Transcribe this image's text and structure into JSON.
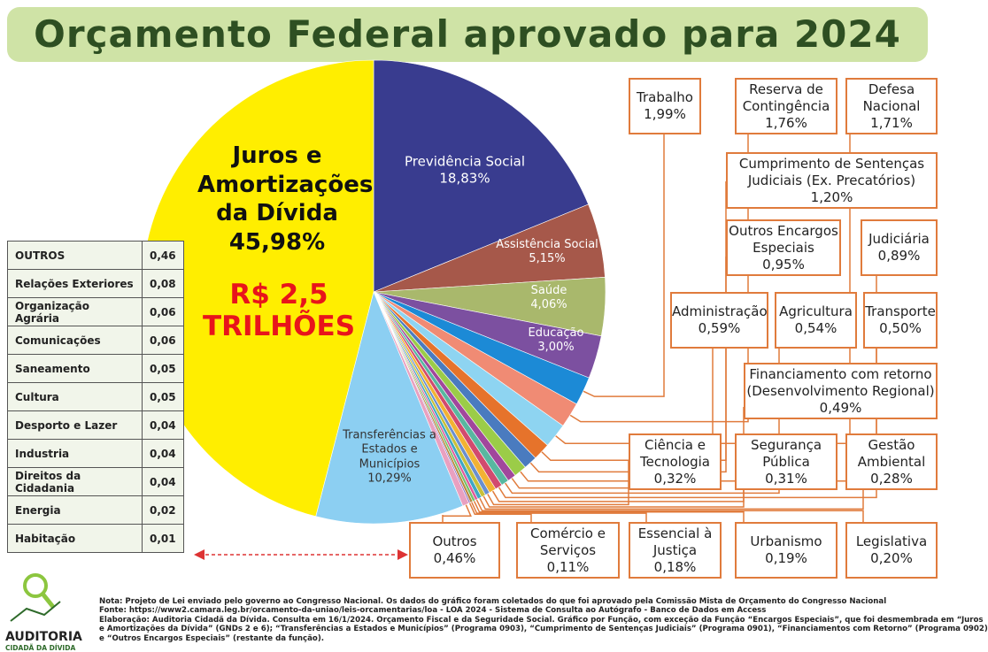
{
  "header": {
    "title": "Orçamento Federal aprovado para 2024"
  },
  "chart_data": {
    "type": "pie",
    "categories": [
      "Previdência Social",
      "Assistência Social",
      "Saúde",
      "Educação",
      "Trabalho",
      "Reserva de Contingência",
      "Defesa Nacional",
      "Cumprimento de Sentenças Judiciais (Ex. Precatórios)",
      "Outros Encargos Especiais",
      "Judiciária",
      "Administração",
      "Agricultura",
      "Transporte",
      "Financiamento com retorno (Desenvolvimento Regional)",
      "Ciência e Tecnologia",
      "Segurança Pública",
      "Gestão Ambiental",
      "Legislativa",
      "Urbanismo",
      "Essencial à Justiça",
      "Comércio e Serviços",
      "Outros",
      "Transferências a Estados e Municípios",
      "Juros e Amortizações da Dívida"
    ],
    "values": [
      18.83,
      5.15,
      4.06,
      3.0,
      1.99,
      1.76,
      1.71,
      1.2,
      0.95,
      0.89,
      0.59,
      0.54,
      0.5,
      0.49,
      0.32,
      0.31,
      0.28,
      0.2,
      0.19,
      0.18,
      0.11,
      0.46,
      10.29,
      45.98
    ],
    "value_labels": [
      "18,83%",
      "5,15%",
      "4,06%",
      "3,00%",
      "1,99%",
      "1,76%",
      "1,71%",
      "1,20%",
      "0,95%",
      "0,89%",
      "0,59%",
      "0,54%",
      "0,50%",
      "0,49%",
      "0,32%",
      "0,31%",
      "0,28%",
      "0,20%",
      "0,19%",
      "0,18%",
      "0,11%",
      "0,46%",
      "10,29%",
      "45,98%"
    ],
    "colors": [
      "#393c8f",
      "#a6584a",
      "#a9b86c",
      "#7c50a0",
      "#1c8ad6",
      "#f08b74",
      "#8ed4f1",
      "#e6732b",
      "#4a7bbf",
      "#9bcc48",
      "#a1479c",
      "#58b7a0",
      "#d24a6e",
      "#f2b233",
      "#6a8fd0",
      "#c9c03a",
      "#3fa6c4",
      "#e05a9a",
      "#76c06a",
      "#b8863b",
      "#8d6dc2",
      "#e9a0c0",
      "#8ccff2",
      "#ffee00"
    ],
    "annotation": "R$ 2,5 TRILHÕES"
  },
  "table": {
    "rows": [
      [
        "OUTROS",
        "0,46"
      ],
      [
        "Relações Exteriores",
        "0,08"
      ],
      [
        "Organização Agrária",
        "0,06"
      ],
      [
        "Comunicações",
        "0,06"
      ],
      [
        "Saneamento",
        "0,05"
      ],
      [
        "Cultura",
        "0,05"
      ],
      [
        "Desporto e Lazer",
        "0,04"
      ],
      [
        "Industria",
        "0,04"
      ],
      [
        "Direitos da Cidadania",
        "0,04"
      ],
      [
        "Energia",
        "0,02"
      ],
      [
        "Habitação",
        "0,01"
      ]
    ]
  },
  "notes": [
    "Nota: Projeto de Lei enviado pelo governo ao Congresso Nacional. Os dados do gráfico foram coletados do que foi aprovado pela Comissão Mista de Orçamento do Congresso Nacional",
    "Fonte: https://www2.camara.leg.br/orcamento-da-uniao/leis-orcamentarias/loa - LOA 2024 - Sistema de Consulta ao Autógrafo - Banco de Dados em Access",
    "Elaboração: Auditoria Cidadã da Dívida. Consulta em 16/1/2024. Orçamento Fiscal e da Seguridade Social. Gráfico por Função, com exceção da Função “Encargos Especiais”, que foi desmembrada em “Juros",
    "e Amortizações da Dívida” (GNDs 2 e 6); “Transferências a Estados e Municípios” (Programa 0903), “Cumprimento de Sentenças Judiciais” (Programa 0901), “Financiamentos com Retorno” (Programa 0902)",
    "e “Outros Encargos Especiais” (restante da função)."
  ],
  "logo": {
    "name": "AUDITORIA",
    "subtitle": "CIDADÃ DA DÍVIDA"
  }
}
